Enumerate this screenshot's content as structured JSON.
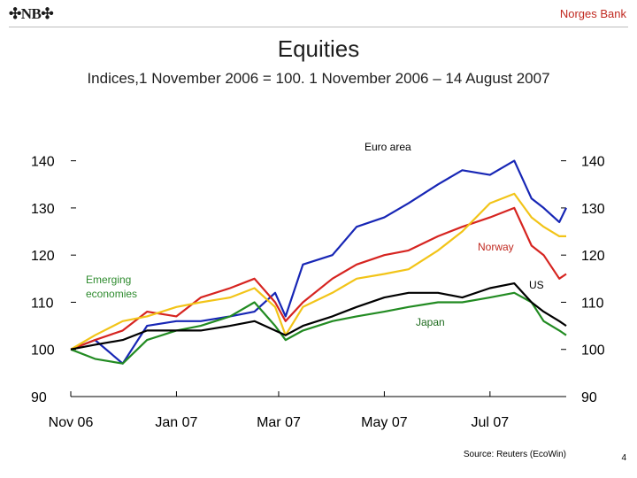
{
  "header": {
    "logo_text": "NB",
    "org_name": "Norges Bank"
  },
  "slide": {
    "title": "Equities",
    "subtitle": "Indices,1 November 2006 = 100. 1 November 2006 – 14 August 2007",
    "source": "Source: Reuters (EcoWin)",
    "page_number": "4"
  },
  "chart_data": {
    "type": "line",
    "title": "Equities",
    "ylim": [
      90,
      145
    ],
    "y_ticks": [
      90,
      100,
      110,
      120,
      130,
      140
    ],
    "x_ticks": [
      "Nov 06",
      "Jan 07",
      "Mar 07",
      "May 07",
      "Jul 07"
    ],
    "x_tick_dates": [
      "2006-11-01",
      "2007-01-01",
      "2007-03-01",
      "2007-05-01",
      "2007-07-01"
    ],
    "xlim": [
      "2006-11-01",
      "2007-08-14"
    ],
    "grid": false,
    "series": [
      {
        "name": "Euro area",
        "color": "#1726b5",
        "x": [
          "2006-11-01",
          "2006-11-15",
          "2006-12-01",
          "2006-12-15",
          "2007-01-01",
          "2007-01-15",
          "2007-02-01",
          "2007-02-15",
          "2007-02-27",
          "2007-03-05",
          "2007-03-15",
          "2007-04-01",
          "2007-04-15",
          "2007-05-01",
          "2007-05-15",
          "2007-06-01",
          "2007-06-15",
          "2007-07-01",
          "2007-07-15",
          "2007-07-25",
          "2007-08-01",
          "2007-08-10",
          "2007-08-14"
        ],
        "values": [
          100,
          102,
          97,
          105,
          106,
          106,
          107,
          108,
          112,
          107,
          118,
          120,
          126,
          128,
          131,
          135,
          138,
          137,
          140,
          132,
          130,
          127,
          130
        ]
      },
      {
        "name": "Norway",
        "color": "#d62420",
        "x": [
          "2006-11-01",
          "2006-11-15",
          "2006-12-01",
          "2006-12-15",
          "2007-01-01",
          "2007-01-15",
          "2007-02-01",
          "2007-02-15",
          "2007-02-27",
          "2007-03-05",
          "2007-03-15",
          "2007-04-01",
          "2007-04-15",
          "2007-05-01",
          "2007-05-15",
          "2007-06-01",
          "2007-06-15",
          "2007-07-01",
          "2007-07-15",
          "2007-07-25",
          "2007-08-01",
          "2007-08-10",
          "2007-08-14"
        ],
        "values": [
          100,
          102,
          104,
          108,
          107,
          111,
          113,
          115,
          110,
          106,
          110,
          115,
          118,
          120,
          121,
          124,
          126,
          128,
          130,
          122,
          120,
          115,
          116
        ]
      },
      {
        "name": "",
        "color": "#f2c418",
        "x": [
          "2006-11-01",
          "2006-11-15",
          "2006-12-01",
          "2006-12-15",
          "2007-01-01",
          "2007-01-15",
          "2007-02-01",
          "2007-02-15",
          "2007-02-27",
          "2007-03-05",
          "2007-03-15",
          "2007-04-01",
          "2007-04-15",
          "2007-05-01",
          "2007-05-15",
          "2007-06-01",
          "2007-06-15",
          "2007-07-01",
          "2007-07-15",
          "2007-07-25",
          "2007-08-01",
          "2007-08-10",
          "2007-08-14"
        ],
        "values": [
          100,
          103,
          106,
          107,
          109,
          110,
          111,
          113,
          109,
          103,
          109,
          112,
          115,
          116,
          117,
          121,
          125,
          131,
          133,
          128,
          126,
          124,
          124
        ]
      },
      {
        "name": "Emerging economies",
        "color": "#228b22",
        "x": [
          "2006-11-01",
          "2006-11-15",
          "2006-12-01",
          "2006-12-15",
          "2007-01-01",
          "2007-01-15",
          "2007-02-01",
          "2007-02-15",
          "2007-02-27",
          "2007-03-05",
          "2007-03-15",
          "2007-04-01",
          "2007-04-15",
          "2007-05-01",
          "2007-05-15",
          "2007-06-01",
          "2007-06-15",
          "2007-07-01",
          "2007-07-15",
          "2007-07-25",
          "2007-08-01",
          "2007-08-10",
          "2007-08-14"
        ],
        "values": [
          100,
          98,
          97,
          102,
          104,
          105,
          107,
          110,
          105,
          102,
          104,
          106,
          107,
          108,
          109,
          110,
          110,
          111,
          112,
          110,
          106,
          104,
          103
        ]
      },
      {
        "name": "US",
        "color": "#000000",
        "x": [
          "2006-11-01",
          "2006-11-15",
          "2006-12-01",
          "2006-12-15",
          "2007-01-01",
          "2007-01-15",
          "2007-02-01",
          "2007-02-15",
          "2007-02-27",
          "2007-03-05",
          "2007-03-15",
          "2007-04-01",
          "2007-04-15",
          "2007-05-01",
          "2007-05-15",
          "2007-06-01",
          "2007-06-15",
          "2007-07-01",
          "2007-07-15",
          "2007-07-25",
          "2007-08-01",
          "2007-08-10",
          "2007-08-14"
        ],
        "values": [
          100,
          101,
          102,
          104,
          104,
          104,
          105,
          106,
          104,
          103,
          105,
          107,
          109,
          111,
          112,
          112,
          111,
          113,
          114,
          110,
          108,
          106,
          105
        ]
      }
    ],
    "annotations": [
      "Euro area",
      "Norway",
      "Emerging economies",
      "US",
      "Japan"
    ]
  }
}
